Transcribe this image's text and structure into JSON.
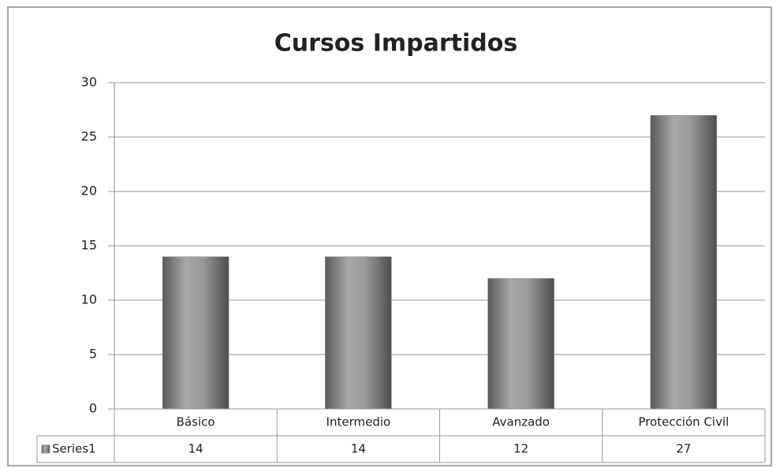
{
  "chart_data": {
    "type": "bar",
    "title": "Cursos Impartidos",
    "categories": [
      "Básico",
      "Intermedio",
      "Avanzado",
      "Protección Civil"
    ],
    "series": [
      {
        "name": "Series1",
        "color": "#8c8c8c",
        "values": [
          14,
          14,
          12,
          27
        ]
      }
    ],
    "ylim": [
      0,
      30
    ],
    "yticks": [
      0,
      5,
      10,
      15,
      20,
      25,
      30
    ],
    "grid": true,
    "data_table": true
  }
}
